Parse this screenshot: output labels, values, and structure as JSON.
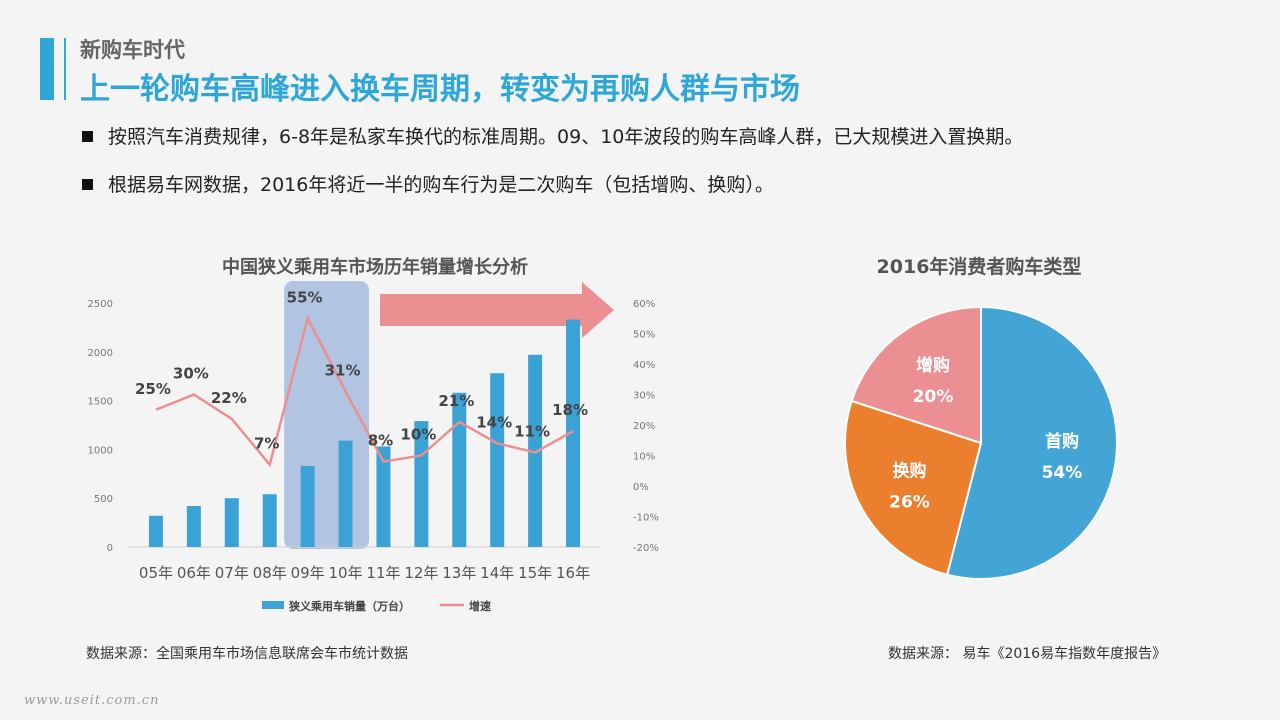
{
  "header": {
    "subtitle": "新购车时代",
    "title": "上一轮购车高峰进入换车周期，转变为再购人群与市场"
  },
  "bullets": [
    "按照汽车消费规律，6-8年是私家车换代的标准周期。09、10年波段的购车高峰人群，已大规模进入置换期。",
    "根据易车网数据，2016年将近一半的购车行为是二次购车（包括增购、换购）。"
  ],
  "colors": {
    "accent": "#2ea7d8",
    "bar": "#3aa2d4",
    "line": "#ec8f92",
    "highlight": "#b1c4e1",
    "arrow": "#ec8f92",
    "pie_first": "#43a5d6",
    "pie_replace": "#ec7f2e",
    "pie_add": "#ec8f92"
  },
  "chart_data": [
    {
      "type": "bar",
      "title": "中国狭义乘用车市场历年销量增长分析",
      "categories": [
        "05年",
        "06年",
        "07年",
        "08年",
        "09年",
        "10年",
        "11年",
        "12年",
        "13年",
        "14年",
        "15年",
        "16年"
      ],
      "y_ticks": [
        "0",
        "500",
        "1000",
        "1500",
        "2000",
        "2500"
      ],
      "y2_ticks": [
        "-20%",
        "-10%",
        "0%",
        "10%",
        "20%",
        "30%",
        "40%",
        "50%",
        "60%"
      ],
      "ylim": [
        0,
        2500
      ],
      "y2lim": [
        -20,
        60
      ],
      "series": [
        {
          "name": "狭义乘用车销量（万台）",
          "type": "bar",
          "axis": "left",
          "values": [
            320,
            420,
            500,
            540,
            830,
            1090,
            1030,
            1290,
            1580,
            1780,
            1970,
            2330
          ]
        },
        {
          "name": "增速",
          "type": "line",
          "axis": "right",
          "values": [
            25,
            30,
            22,
            7,
            55,
            31,
            8,
            10,
            21,
            14,
            11,
            18
          ],
          "labels": [
            "25%",
            "30%",
            "22%",
            "7%",
            "55%",
            "31%",
            "8%",
            "10%",
            "21%",
            "14%",
            "11%",
            "18%"
          ]
        }
      ],
      "highlight_categories": [
        "09年",
        "10年"
      ],
      "legend_position": "bottom",
      "grid": false
    },
    {
      "type": "pie",
      "title": "2016年消费者购车类型",
      "slices": [
        {
          "label": "首购",
          "value": 54,
          "display": "54%"
        },
        {
          "label": "换购",
          "value": 26,
          "display": "26%"
        },
        {
          "label": "增购",
          "value": 20,
          "display": "20%"
        }
      ]
    }
  ],
  "sources": {
    "left": "数据来源：全国乘用车市场信息联席会车市统计数据",
    "right": "数据来源： 易车《2016易车指数年度报告》"
  },
  "watermark": "www.useit.com.cn"
}
